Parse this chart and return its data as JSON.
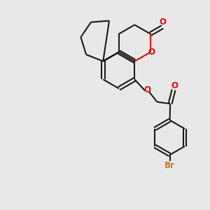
{
  "bg_color": "#e8e8e8",
  "bond_color": "#1a1a1a",
  "oxygen_color": "#ff0000",
  "bromine_color": "#cc7722",
  "lw": 1.5,
  "xlim": [
    0,
    10
  ],
  "ylim": [
    0,
    12
  ]
}
